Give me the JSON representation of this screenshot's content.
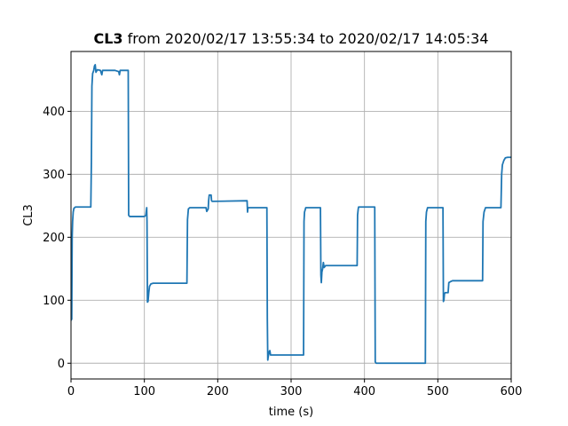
{
  "chart_data": {
    "type": "line",
    "title_bold": "CL3",
    "title_rest": " from 2020/02/17 13:55:34 to 2020/02/17 14:05:34",
    "xlabel": "time (s)",
    "ylabel": "CL3",
    "xlim": [
      0,
      600
    ],
    "ylim": [
      -25,
      495
    ],
    "xticks": [
      0,
      100,
      200,
      300,
      400,
      500,
      600
    ],
    "yticks": [
      0,
      100,
      200,
      300,
      400
    ],
    "grid": true,
    "colors": {
      "line": "#1f77b4",
      "grid": "#b0b0b0",
      "axes": "#000000"
    },
    "series": [
      {
        "points": [
          [
            0,
            68
          ],
          [
            1,
            70
          ],
          [
            1.6,
            200
          ],
          [
            2.2,
            225
          ],
          [
            3,
            240
          ],
          [
            4,
            246
          ],
          [
            6,
            248
          ],
          [
            27,
            248
          ],
          [
            27.8,
            320
          ],
          [
            28.5,
            440
          ],
          [
            29.5,
            460
          ],
          [
            31,
            465
          ],
          [
            32,
            472
          ],
          [
            33,
            474
          ],
          [
            34,
            462
          ],
          [
            36,
            466
          ],
          [
            40,
            465
          ],
          [
            42,
            458
          ],
          [
            43,
            465
          ],
          [
            50,
            465
          ],
          [
            60,
            465
          ],
          [
            65,
            463
          ],
          [
            66,
            458
          ],
          [
            67,
            465
          ],
          [
            78,
            465
          ],
          [
            78.6,
            235
          ],
          [
            80,
            233
          ],
          [
            100,
            233
          ],
          [
            102,
            235
          ],
          [
            103.2,
            247
          ],
          [
            103.6,
            225
          ],
          [
            104.2,
            97
          ],
          [
            105,
            98
          ],
          [
            106,
            112
          ],
          [
            107,
            122
          ],
          [
            109,
            126
          ],
          [
            112,
            127
          ],
          [
            158,
            127
          ],
          [
            158.8,
            228
          ],
          [
            160,
            245
          ],
          [
            162,
            247
          ],
          [
            184,
            247
          ],
          [
            185,
            241
          ],
          [
            187,
            245
          ],
          [
            187.6,
            258
          ],
          [
            188.4,
            267
          ],
          [
            191,
            267
          ],
          [
            191.6,
            258
          ],
          [
            192.5,
            257
          ],
          [
            240,
            258
          ],
          [
            240.6,
            240
          ],
          [
            241.2,
            247
          ],
          [
            267,
            247
          ],
          [
            267.6,
            70
          ],
          [
            268.2,
            5
          ],
          [
            268.8,
            10
          ],
          [
            270,
            18
          ],
          [
            271,
            20
          ],
          [
            272,
            13
          ],
          [
            274,
            13
          ],
          [
            300,
            13
          ],
          [
            317,
            13
          ],
          [
            317.6,
            225
          ],
          [
            318.3,
            240
          ],
          [
            320,
            247
          ],
          [
            340,
            247
          ],
          [
            340.6,
            140
          ],
          [
            341.2,
            128
          ],
          [
            342,
            145
          ],
          [
            343,
            150
          ],
          [
            344,
            160
          ],
          [
            345,
            152
          ],
          [
            347,
            155
          ],
          [
            390,
            155
          ],
          [
            390.6,
            235
          ],
          [
            391.5,
            245
          ],
          [
            392,
            248
          ],
          [
            414,
            248
          ],
          [
            414.7,
            2
          ],
          [
            416,
            0
          ],
          [
            483,
            0
          ],
          [
            483.6,
            225
          ],
          [
            484.5,
            240
          ],
          [
            486,
            247
          ],
          [
            507,
            247
          ],
          [
            507.6,
            98
          ],
          [
            508.3,
            100
          ],
          [
            509,
            110
          ],
          [
            510,
            112
          ],
          [
            514,
            112
          ],
          [
            515,
            128
          ],
          [
            518,
            130
          ],
          [
            520,
            131
          ],
          [
            561,
            131
          ],
          [
            561.6,
            225
          ],
          [
            563,
            240
          ],
          [
            565,
            247
          ],
          [
            586,
            247
          ],
          [
            587,
            300
          ],
          [
            588,
            315
          ],
          [
            590,
            322
          ],
          [
            592,
            326
          ],
          [
            595,
            327
          ],
          [
            600,
            327
          ]
        ]
      }
    ]
  }
}
